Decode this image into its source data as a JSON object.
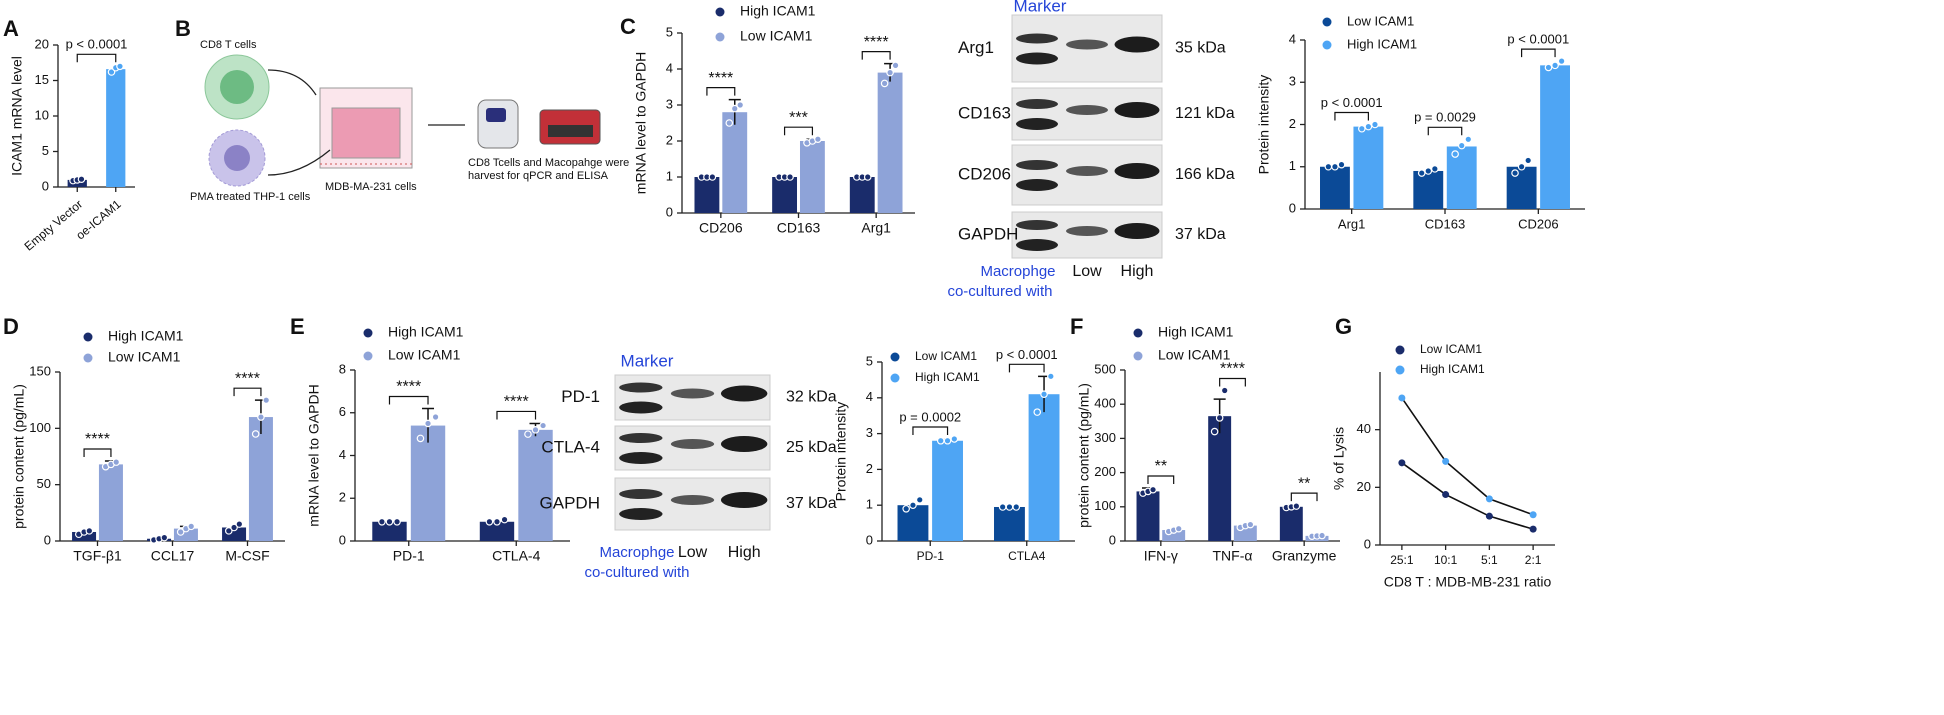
{
  "chart_data": [
    {
      "type": "bar",
      "panel": "A",
      "ylabel": "ICAM1 mRNA level",
      "categories": [
        "Empty Vector",
        "oe-ICAM1"
      ],
      "series": [
        {
          "name": null,
          "colors": [
            "#1a2c6b",
            "#4ea5f4"
          ],
          "values": [
            1.0,
            16.6
          ],
          "points": [
            [
              0.9,
              1.0,
              1.1
            ],
            [
              16.2,
              16.8,
              17.0
            ]
          ]
        }
      ],
      "ylim": [
        0,
        20
      ],
      "yticks": [
        0,
        5,
        10,
        15,
        20
      ],
      "annotations": [
        {
          "text": "p < 0.0001"
        }
      ]
    },
    {
      "type": "bar",
      "panel": "C",
      "ylabel": "mRNA level to GAPDH",
      "categories": [
        "CD206",
        "CD163",
        "Arg1"
      ],
      "legend": "upper left",
      "series": [
        {
          "name": "High ICAM1",
          "color": "#1a2c6b",
          "values": [
            1,
            1,
            1
          ],
          "points": [
            [
              1,
              1,
              1
            ],
            [
              1,
              1,
              1
            ],
            [
              1,
              1,
              1
            ]
          ]
        },
        {
          "name": "Low ICAM1",
          "color": "#8ea3d8",
          "values": [
            2.8,
            2.0,
            3.9
          ],
          "errors": [
            0.35,
            0.05,
            0.25
          ],
          "points": [
            [
              2.5,
              2.9,
              3.0
            ],
            [
              1.95,
              2.0,
              2.05
            ],
            [
              3.6,
              3.9,
              4.1
            ]
          ]
        }
      ],
      "ylim": [
        0,
        5
      ],
      "yticks": [
        0,
        1,
        2,
        3,
        4,
        5
      ],
      "annotations": [
        {
          "group": "CD206",
          "text": "****"
        },
        {
          "group": "CD163",
          "text": "***"
        },
        {
          "group": "Arg1",
          "text": "****"
        }
      ]
    },
    {
      "type": "bar",
      "ylabel": "Protein intensity",
      "categories": [
        "Arg1",
        "CD163",
        "CD206"
      ],
      "legend": "upper left",
      "series": [
        {
          "name": "Low ICAM1",
          "color": "#0b4a97",
          "values": [
            1.0,
            0.9,
            1.0
          ],
          "points": [
            [
              1.0,
              1.0,
              1.05
            ],
            [
              0.85,
              0.9,
              0.95
            ],
            [
              0.85,
              1.0,
              1.15
            ]
          ]
        },
        {
          "name": "High ICAM1",
          "color": "#4ea5f4",
          "values": [
            1.95,
            1.48,
            3.4
          ],
          "points": [
            [
              1.9,
              1.95,
              2.0
            ],
            [
              1.3,
              1.5,
              1.65
            ],
            [
              3.35,
              3.4,
              3.5
            ]
          ]
        }
      ],
      "ylim": [
        0,
        4
      ],
      "yticks": [
        0,
        1,
        2,
        3,
        4
      ],
      "annotations": [
        {
          "group": "Arg1",
          "text": "p < 0.0001"
        },
        {
          "group": "CD163",
          "text": "p = 0.0029"
        },
        {
          "group": "CD206",
          "text": "p < 0.0001"
        }
      ]
    },
    {
      "type": "bar",
      "panel": "D",
      "ylabel": "protein content (pg/mL)",
      "categories": [
        "TGF-β1",
        "CCL17",
        "M-CSF"
      ],
      "legend": "upper left",
      "series": [
        {
          "name": "High ICAM1",
          "color": "#1a2c6b",
          "values": [
            8,
            2,
            12
          ],
          "points": [
            [
              6,
              8,
              9
            ],
            [
              1,
              2,
              3
            ],
            [
              9,
              12,
              15
            ]
          ]
        },
        {
          "name": "Low ICAM1",
          "color": "#8ea3d8",
          "values": [
            68,
            11,
            110
          ],
          "errors": [
            3,
            2,
            15
          ],
          "points": [
            [
              66,
              68,
              70
            ],
            [
              8,
              11,
              13
            ],
            [
              95,
              110,
              125
            ]
          ]
        }
      ],
      "ylim": [
        0,
        150
      ],
      "yticks": [
        0,
        50,
        100,
        150
      ],
      "annotations": [
        {
          "group": "TGF-β1",
          "text": "****"
        },
        {
          "group": "M-CSF",
          "text": "****"
        }
      ]
    },
    {
      "type": "bar",
      "panel": "E",
      "ylabel": "mRNA level to GAPDH",
      "categories": [
        "PD-1",
        "CTLA-4"
      ],
      "legend": "upper left",
      "series": [
        {
          "name": "High ICAM1",
          "color": "#1a2c6b",
          "values": [
            0.9,
            0.9
          ],
          "points": [
            [
              0.9,
              0.9,
              0.9
            ],
            [
              0.9,
              0.9,
              1.0
            ]
          ]
        },
        {
          "name": "Low ICAM1",
          "color": "#8ea3d8",
          "values": [
            5.4,
            5.2
          ],
          "errors": [
            0.8,
            0.3
          ],
          "points": [
            [
              4.8,
              5.5,
              5.8
            ],
            [
              5.0,
              5.2,
              5.4
            ]
          ]
        }
      ],
      "ylim": [
        0,
        8
      ],
      "yticks": [
        0,
        2,
        4,
        6,
        8
      ],
      "annotations": [
        {
          "group": "PD-1",
          "text": "****"
        },
        {
          "group": "CTLA-4",
          "text": "****"
        }
      ]
    },
    {
      "type": "bar",
      "ylabel": "Protein intensity",
      "categories": [
        "PD-1",
        "CTLA4"
      ],
      "legend": "upper left",
      "series": [
        {
          "name": "Low ICAM1",
          "color": "#0b4a97",
          "values": [
            1.0,
            0.95
          ],
          "points": [
            [
              0.9,
              1.0,
              1.15
            ],
            [
              0.95,
              0.95,
              0.95
            ]
          ]
        },
        {
          "name": "High ICAM1",
          "color": "#4ea5f4",
          "values": [
            2.8,
            4.1
          ],
          "errors": [
            0.03,
            0.5
          ],
          "points": [
            [
              2.8,
              2.8,
              2.85
            ],
            [
              3.6,
              4.1,
              4.6
            ]
          ]
        }
      ],
      "ylim": [
        0,
        5
      ],
      "yticks": [
        0,
        1,
        2,
        3,
        4,
        5
      ],
      "annotations": [
        {
          "group": "PD-1",
          "text": "p = 0.0002"
        },
        {
          "group": "CTLA4",
          "text": "p < 0.0001"
        }
      ]
    },
    {
      "type": "bar",
      "panel": "F",
      "ylabel": "protein content (pg/mL)",
      "categories": [
        "IFN-γ",
        "TNF-α",
        "Granzyme"
      ],
      "legend": "upper left",
      "series": [
        {
          "name": "High ICAM1",
          "color": "#1a2c6b",
          "values": [
            145,
            365,
            100
          ],
          "errors": [
            10,
            50,
            5
          ],
          "points": [
            [
              140,
              145,
              150
            ],
            [
              320,
              360,
              440
            ],
            [
              98,
              100,
              102
            ]
          ]
        },
        {
          "name": "Low ICAM1",
          "color": "#8ea3d8",
          "values": [
            32,
            45,
            15
          ],
          "points": [
            [
              28,
              32,
              36
            ],
            [
              40,
              45,
              48
            ],
            [
              14,
              15,
              16
            ]
          ]
        }
      ],
      "ylim": [
        0,
        500
      ],
      "yticks": [
        0,
        100,
        200,
        300,
        400,
        500
      ],
      "annotations": [
        {
          "group": "IFN-γ",
          "text": "**"
        },
        {
          "group": "TNF-α",
          "text": "****"
        },
        {
          "group": "Granzyme",
          "text": "**"
        }
      ]
    },
    {
      "type": "line",
      "panel": "G",
      "ylabel": "% of Lysis",
      "xlabel": "CD8 T : MDB-MB-231 ratio",
      "categories": [
        "25:1",
        "10:1",
        "5:1",
        "2:1"
      ],
      "legend": "upper left",
      "series": [
        {
          "name": "Low ICAM1",
          "color": "#1a2c6b",
          "values": [
            28.5,
            17.5,
            10,
            5.5
          ]
        },
        {
          "name": "High ICAM1",
          "color": "#4ea5f4",
          "values": [
            51,
            29,
            16,
            10.5
          ]
        }
      ],
      "ylim": [
        0,
        60
      ],
      "yticks": [
        0,
        20,
        40
      ]
    }
  ],
  "diagram": {
    "panel": "B",
    "cd8": "CD8 T cells",
    "thp1": "PMA treated THP-1 cells",
    "well": "MDB-MA-231 cells",
    "note": [
      "CD8 Tcells and Macopahge were",
      "harvest for qPCR and ELISA"
    ]
  },
  "blots": [
    {
      "header": "Marker",
      "rows": [
        {
          "label": "Arg1",
          "kda": "35 kDa"
        },
        {
          "label": "CD163",
          "kda": "121 kDa"
        },
        {
          "label": "CD206",
          "kda": "166 kDa"
        },
        {
          "label": "GAPDH",
          "kda": "37 kDa"
        }
      ],
      "footer": [
        "Macrophge",
        "co-cultured with"
      ],
      "lanes": [
        "Low",
        "High"
      ]
    },
    {
      "header": "Marker",
      "rows": [
        {
          "label": "PD-1",
          "kda": "32 kDa"
        },
        {
          "label": "CTLA-4",
          "kda": "25 kDa"
        },
        {
          "label": "GAPDH",
          "kda": "37 kDa"
        }
      ],
      "footer": [
        "Macrophge",
        "co-cultured with"
      ],
      "lanes": [
        "Low",
        "High"
      ]
    }
  ]
}
